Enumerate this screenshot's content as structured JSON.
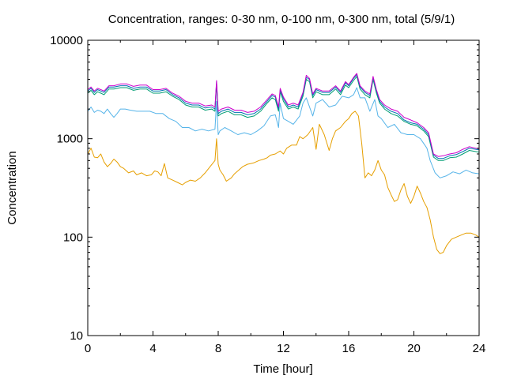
{
  "chart_data": {
    "type": "line",
    "title": "Concentration, ranges: 0-30 nm, 0-100 nm, 0-300 nm, total (5/9/1)",
    "xlabel": "Time [hour]",
    "ylabel": "Concentration",
    "xlim": [
      0,
      24
    ],
    "ylim": [
      10,
      10000
    ],
    "yscale": "log",
    "grid": false,
    "x_ticks": [
      "0",
      "4",
      "8",
      "12",
      "16",
      "20",
      "24"
    ],
    "y_ticks": [
      "10",
      "100",
      "1000",
      "10000"
    ],
    "series": [
      {
        "color": "#e69f00",
        "x": [
          0,
          0.2,
          0.4,
          0.6,
          0.8,
          1.0,
          1.2,
          1.4,
          1.6,
          1.8,
          2.0,
          2.2,
          2.5,
          2.8,
          3.0,
          3.3,
          3.6,
          3.9,
          4.1,
          4.3,
          4.5,
          4.7,
          4.9,
          5.2,
          5.5,
          5.8,
          6.0,
          6.3,
          6.6,
          6.9,
          7.2,
          7.5,
          7.8,
          7.9,
          8.0,
          8.1,
          8.3,
          8.5,
          8.8,
          9.0,
          9.2,
          9.5,
          9.8,
          10.0,
          10.2,
          10.5,
          10.8,
          11.0,
          11.2,
          11.5,
          11.8,
          12.0,
          12.2,
          12.5,
          12.8,
          13.0,
          13.2,
          13.5,
          13.8,
          14.0,
          14.2,
          14.5,
          14.8,
          15.0,
          15.2,
          15.5,
          15.8,
          16.0,
          16.2,
          16.4,
          16.6,
          16.8,
          17.0,
          17.2,
          17.4,
          17.6,
          17.8,
          18.0,
          18.2,
          18.4,
          18.6,
          18.8,
          19.0,
          19.2,
          19.4,
          19.6,
          19.8,
          20.0,
          20.2,
          20.4,
          20.6,
          20.8,
          21.0,
          21.2,
          21.4,
          21.6,
          21.8,
          22.0,
          22.3,
          22.6,
          22.9,
          23.2,
          23.5,
          23.8,
          24.0
        ],
        "values": [
          700,
          800,
          650,
          640,
          700,
          580,
          520,
          560,
          620,
          580,
          520,
          500,
          450,
          470,
          430,
          450,
          420,
          430,
          470,
          460,
          420,
          560,
          400,
          380,
          360,
          340,
          360,
          380,
          370,
          400,
          450,
          520,
          600,
          1000,
          550,
          480,
          430,
          370,
          400,
          440,
          470,
          520,
          550,
          560,
          570,
          600,
          620,
          640,
          680,
          700,
          750,
          700,
          800,
          860,
          860,
          1050,
          1000,
          1100,
          1300,
          780,
          1400,
          1100,
          760,
          1000,
          1200,
          1300,
          1500,
          1600,
          1800,
          1900,
          1700,
          900,
          400,
          450,
          420,
          480,
          600,
          480,
          430,
          320,
          270,
          230,
          240,
          300,
          350,
          260,
          220,
          260,
          330,
          280,
          230,
          200,
          150,
          100,
          75,
          68,
          70,
          82,
          95,
          100,
          105,
          110,
          110,
          105,
          100
        ]
      },
      {
        "color": "#56b4e9",
        "x": [
          0,
          0.2,
          0.4,
          0.6,
          0.8,
          1.0,
          1.2,
          1.4,
          1.6,
          1.8,
          2.0,
          2.3,
          2.6,
          3.0,
          3.4,
          3.8,
          4.2,
          4.6,
          5.0,
          5.4,
          5.8,
          6.2,
          6.6,
          7.0,
          7.4,
          7.8,
          7.9,
          8.0,
          8.1,
          8.4,
          8.8,
          9.2,
          9.6,
          10.0,
          10.4,
          10.8,
          11.2,
          11.5,
          11.7,
          11.8,
          12.0,
          12.3,
          12.6,
          13.0,
          13.2,
          13.4,
          13.8,
          14.0,
          14.4,
          14.8,
          15.2,
          15.6,
          16.0,
          16.3,
          16.5,
          16.7,
          17.0,
          17.3,
          17.6,
          17.8,
          18.0,
          18.4,
          18.8,
          19.2,
          19.6,
          20.0,
          20.4,
          20.8,
          21.0,
          21.3,
          21.6,
          22.0,
          22.4,
          22.8,
          23.2,
          23.6,
          24.0
        ],
        "values": [
          1900,
          2100,
          1850,
          1950,
          1900,
          1800,
          2000,
          1800,
          1650,
          1800,
          2000,
          2000,
          1950,
          1900,
          1900,
          1900,
          1800,
          1800,
          1600,
          1500,
          1300,
          1300,
          1200,
          1250,
          1200,
          1250,
          2400,
          1100,
          1200,
          1300,
          1200,
          1100,
          1150,
          1100,
          1200,
          1350,
          1700,
          1750,
          1300,
          2300,
          1600,
          1500,
          1400,
          1700,
          2300,
          2600,
          1700,
          2300,
          2500,
          2100,
          2200,
          2700,
          2600,
          2800,
          3300,
          2600,
          2600,
          1900,
          2500,
          1700,
          1600,
          1300,
          1400,
          1150,
          1100,
          1100,
          1000,
          800,
          600,
          450,
          400,
          420,
          460,
          440,
          480,
          450,
          440
        ]
      },
      {
        "color": "#009e73",
        "x": [
          0,
          0.2,
          0.4,
          0.6,
          0.8,
          1.0,
          1.3,
          1.6,
          2.0,
          2.4,
          2.8,
          3.2,
          3.6,
          4.0,
          4.4,
          4.8,
          5.2,
          5.6,
          6.0,
          6.4,
          6.8,
          7.2,
          7.6,
          7.8,
          7.9,
          8.0,
          8.2,
          8.6,
          9.0,
          9.4,
          9.8,
          10.2,
          10.6,
          11.0,
          11.3,
          11.5,
          11.7,
          11.8,
          12.0,
          12.3,
          12.6,
          12.9,
          13.2,
          13.4,
          13.6,
          13.8,
          14.0,
          14.4,
          14.8,
          15.2,
          15.5,
          15.8,
          16.0,
          16.3,
          16.5,
          16.7,
          17.0,
          17.3,
          17.5,
          17.7,
          17.9,
          18.2,
          18.6,
          19.0,
          19.4,
          19.8,
          20.2,
          20.6,
          20.9,
          21.2,
          21.5,
          21.8,
          22.2,
          22.6,
          23.0,
          23.4,
          23.8,
          24.0
        ],
        "values": [
          2900,
          3100,
          2800,
          3000,
          2900,
          2800,
          3200,
          3200,
          3300,
          3300,
          3100,
          3200,
          3200,
          2900,
          2900,
          3000,
          2700,
          2500,
          2200,
          2100,
          2100,
          1950,
          2000,
          1900,
          3600,
          1700,
          1800,
          1900,
          1750,
          1750,
          1650,
          1700,
          1900,
          2300,
          2600,
          2500,
          1900,
          3000,
          2400,
          2000,
          2100,
          2000,
          2700,
          4000,
          3800,
          2600,
          3000,
          2800,
          2800,
          3200,
          2800,
          3500,
          3300,
          3900,
          4300,
          3200,
          2800,
          2600,
          4000,
          2900,
          2300,
          2000,
          1800,
          1700,
          1500,
          1400,
          1350,
          1200,
          1050,
          650,
          600,
          600,
          640,
          650,
          700,
          760,
          740,
          730
        ]
      },
      {
        "color": "#0072b2",
        "x": [
          0,
          0.2,
          0.4,
          0.6,
          0.8,
          1.0,
          1.3,
          1.6,
          2.0,
          2.4,
          2.8,
          3.2,
          3.6,
          4.0,
          4.4,
          4.8,
          5.2,
          5.6,
          6.0,
          6.4,
          6.8,
          7.2,
          7.6,
          7.8,
          7.9,
          8.0,
          8.2,
          8.6,
          9.0,
          9.4,
          9.8,
          10.2,
          10.6,
          11.0,
          11.3,
          11.5,
          11.7,
          11.8,
          12.0,
          12.3,
          12.6,
          12.9,
          13.2,
          13.4,
          13.6,
          13.8,
          14.0,
          14.4,
          14.8,
          15.2,
          15.5,
          15.8,
          16.0,
          16.3,
          16.5,
          16.7,
          17.0,
          17.3,
          17.5,
          17.7,
          17.9,
          18.2,
          18.6,
          19.0,
          19.4,
          19.8,
          20.2,
          20.6,
          20.9,
          21.2,
          21.5,
          21.8,
          22.2,
          22.6,
          23.0,
          23.4,
          23.8,
          24.0
        ],
        "values": [
          3050,
          3250,
          2950,
          3150,
          3050,
          2950,
          3350,
          3350,
          3450,
          3450,
          3250,
          3350,
          3350,
          3050,
          3050,
          3150,
          2800,
          2600,
          2300,
          2200,
          2200,
          2050,
          2100,
          2000,
          3800,
          1800,
          1900,
          2000,
          1850,
          1850,
          1750,
          1800,
          2000,
          2400,
          2750,
          2650,
          2000,
          3150,
          2550,
          2100,
          2200,
          2100,
          2850,
          4200,
          4000,
          2750,
          3150,
          2950,
          2950,
          3350,
          2950,
          3700,
          3450,
          4100,
          4500,
          3350,
          2950,
          2750,
          4200,
          3050,
          2400,
          2100,
          1900,
          1800,
          1550,
          1450,
          1400,
          1250,
          1100,
          680,
          630,
          630,
          670,
          690,
          740,
          800,
          780,
          770
        ]
      },
      {
        "color": "#cc00cc",
        "x": [
          0,
          0.2,
          0.4,
          0.6,
          0.8,
          1.0,
          1.3,
          1.6,
          2.0,
          2.4,
          2.8,
          3.2,
          3.6,
          4.0,
          4.4,
          4.8,
          5.2,
          5.6,
          6.0,
          6.4,
          6.8,
          7.2,
          7.6,
          7.8,
          7.9,
          8.0,
          8.2,
          8.6,
          9.0,
          9.4,
          9.8,
          10.2,
          10.6,
          11.0,
          11.3,
          11.5,
          11.7,
          11.8,
          12.0,
          12.3,
          12.6,
          12.9,
          13.2,
          13.4,
          13.6,
          13.8,
          14.0,
          14.4,
          14.8,
          15.2,
          15.5,
          15.8,
          16.0,
          16.3,
          16.5,
          16.7,
          17.0,
          17.3,
          17.5,
          17.7,
          17.9,
          18.2,
          18.6,
          19.0,
          19.4,
          19.8,
          20.2,
          20.6,
          20.9,
          21.2,
          21.5,
          21.8,
          22.2,
          22.6,
          23.0,
          23.4,
          23.8,
          24.0
        ],
        "values": [
          3150,
          3350,
          3050,
          3250,
          3150,
          3050,
          3450,
          3450,
          3600,
          3600,
          3400,
          3500,
          3500,
          3150,
          3150,
          3250,
          2900,
          2700,
          2400,
          2300,
          2300,
          2150,
          2200,
          2100,
          3900,
          1900,
          2000,
          2100,
          1950,
          1950,
          1850,
          1900,
          2100,
          2500,
          2850,
          2750,
          2100,
          3250,
          2650,
          2200,
          2300,
          2200,
          2950,
          4400,
          4100,
          2850,
          3250,
          3050,
          3050,
          3450,
          3050,
          3800,
          3550,
          4200,
          4600,
          3450,
          3050,
          2850,
          4300,
          3150,
          2500,
          2200,
          2000,
          1900,
          1650,
          1550,
          1450,
          1300,
          1150,
          700,
          660,
          670,
          700,
          720,
          780,
          830,
          800,
          790
        ]
      }
    ]
  }
}
